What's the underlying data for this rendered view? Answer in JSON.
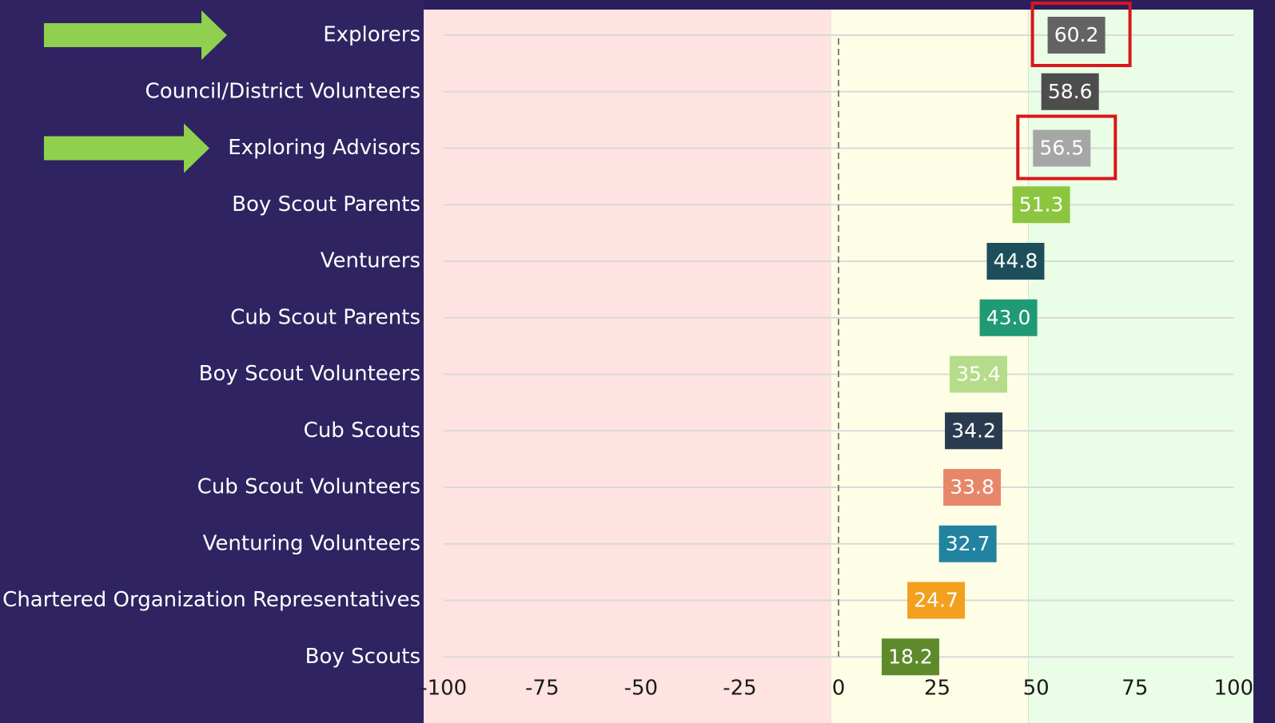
{
  "chart_data": {
    "type": "dot_label",
    "categories": [
      "Explorers",
      "Council/District Volunteers",
      "Exploring Advisors",
      "Boy Scout Parents",
      "Venturers",
      "Cub Scout Parents",
      "Boy Scout Volunteers",
      "Cub Scouts",
      "Cub Scout Volunteers",
      "Venturing Volunteers",
      "Chartered Organization Representatives",
      "Boy Scouts"
    ],
    "values": [
      60.2,
      58.6,
      56.5,
      51.3,
      44.8,
      43.0,
      35.4,
      34.2,
      33.8,
      32.7,
      24.7,
      18.2
    ],
    "value_labels": [
      "60.2",
      "58.6",
      "56.5",
      "51.3",
      "44.8",
      "43.0",
      "35.4",
      "34.2",
      "33.8",
      "32.7",
      "24.7",
      "18.2"
    ],
    "colors": [
      "#636363",
      "#4d4d4d",
      "#a6a6a6",
      "#8cc540",
      "#1d4e5c",
      "#1f9a75",
      "#b5dc8a",
      "#2a3b4f",
      "#e8866a",
      "#2283a0",
      "#f2a01e",
      "#5e8a2c"
    ],
    "xlim": [
      -105,
      105
    ],
    "xticks": [
      -100,
      -75,
      -50,
      -25,
      0,
      25,
      50,
      75,
      100
    ],
    "bands": [
      {
        "from": -105,
        "to": -2,
        "color": "#ffe3e3"
      },
      {
        "from": -2,
        "to": 48,
        "color": "#fefee6"
      },
      {
        "from": 48,
        "to": 105,
        "color": "#eafde6"
      }
    ],
    "reference_line": 0,
    "grid": true,
    "highlight": [
      0,
      2
    ]
  }
}
